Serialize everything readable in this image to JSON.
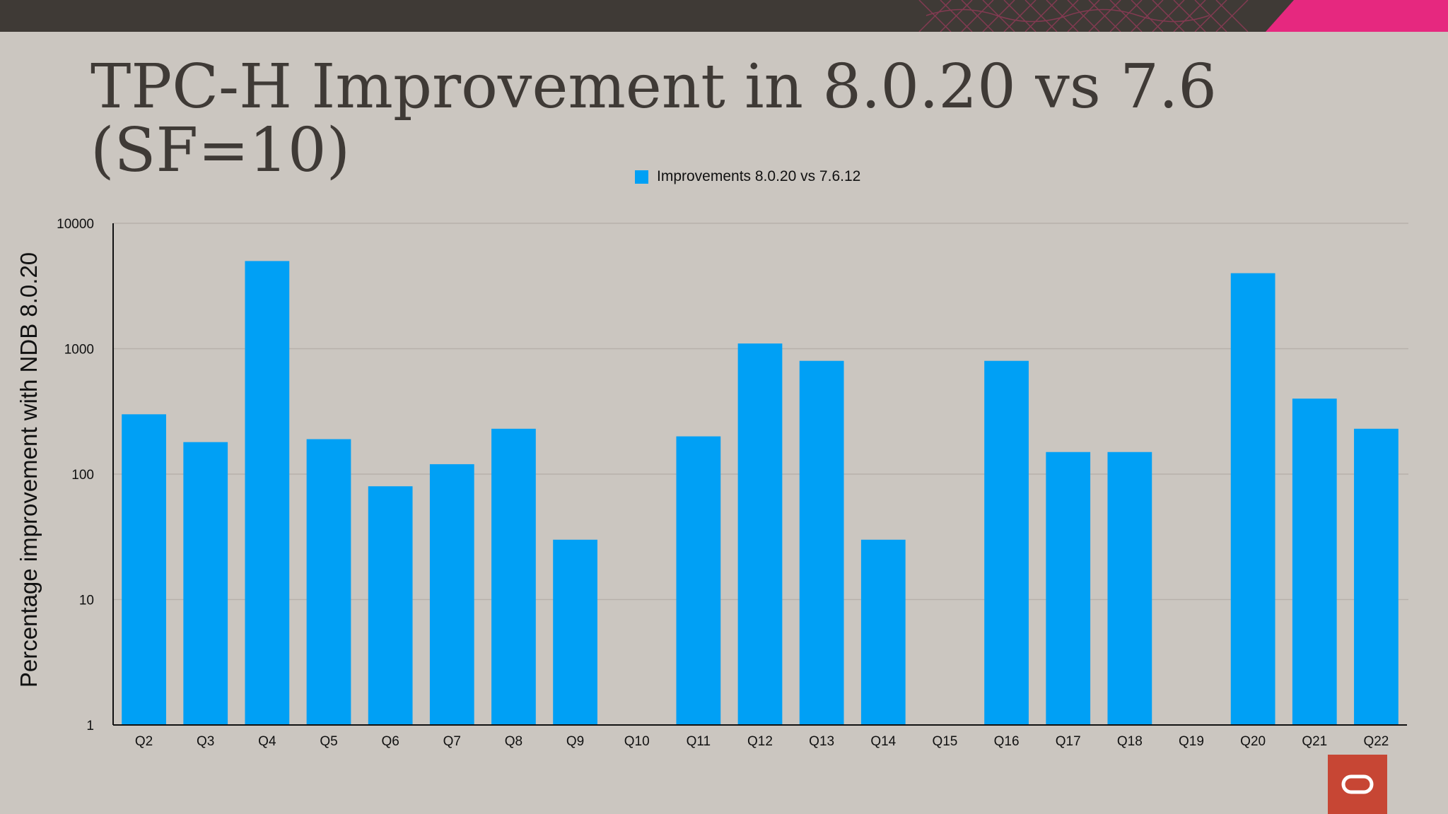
{
  "slide": {
    "title_line1": "TPC-H Improvement in 8.0.20 vs 7.6",
    "title_line2": "(SF=10)"
  },
  "colors": {
    "background": "#cbc6c0",
    "top_bar": "#3f3a36",
    "accent_pink": "#e6287f",
    "bar": "#00a0f5",
    "title_text": "#3f3a36",
    "oracle_red": "#c74634"
  },
  "icons": {
    "logo": "oracle-logo-icon"
  },
  "chart_data": {
    "type": "bar",
    "title": "TPC-H Improvement in 8.0.20 vs 7.6 (SF=10)",
    "ylabel": "Percentage improvement with NDB 8.0.20",
    "xlabel": "",
    "y_scale": "log",
    "ylim": [
      1,
      10000
    ],
    "y_ticks": [
      1,
      10,
      100,
      1000,
      10000
    ],
    "grid": true,
    "legend_position": "top-center",
    "categories": [
      "Q2",
      "Q3",
      "Q4",
      "Q5",
      "Q6",
      "Q7",
      "Q8",
      "Q9",
      "Q10",
      "Q11",
      "Q12",
      "Q13",
      "Q14",
      "Q15",
      "Q16",
      "Q17",
      "Q18",
      "Q19",
      "Q20",
      "Q21",
      "Q22"
    ],
    "series": [
      {
        "name": "Improvements 8.0.20 vs 7.6.12",
        "color": "#00a0f5",
        "values": [
          300,
          180,
          5000,
          190,
          80,
          120,
          230,
          30,
          null,
          200,
          1100,
          800,
          30,
          null,
          800,
          150,
          150,
          null,
          4000,
          400,
          230
        ]
      }
    ]
  }
}
